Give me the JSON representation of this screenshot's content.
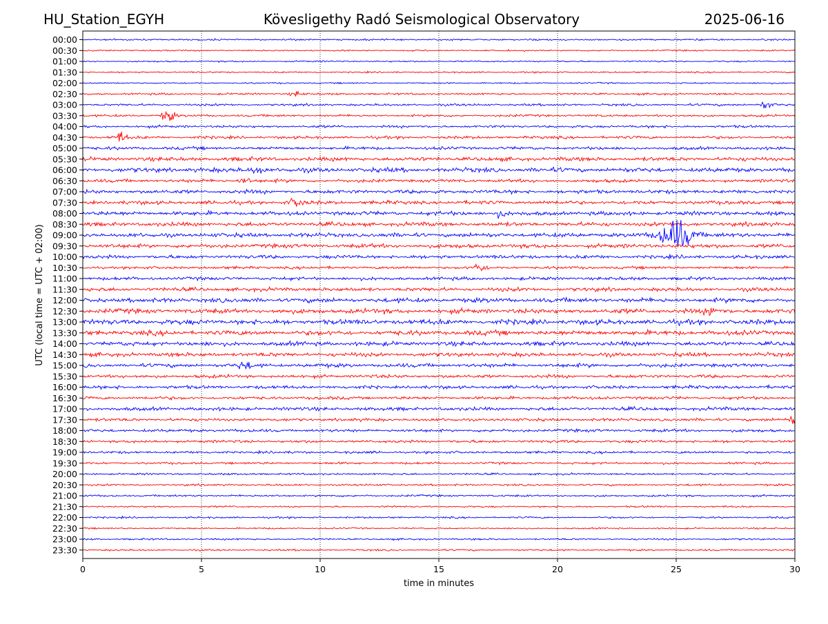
{
  "header": {
    "station": "HU_Station_EGYH",
    "title": "Kövesligethy Radó Seismological Observatory",
    "date": "2025-06-16"
  },
  "chart_data": {
    "type": "line",
    "subtype": "helicorder",
    "title": "Kövesligethy Radó Seismological Observatory",
    "xlabel": "time in minutes",
    "ylabel": "UTC (local time = UTC + 02:00)",
    "xlim": [
      0,
      30
    ],
    "x_ticks": [
      0,
      5,
      10,
      15,
      20,
      25,
      30
    ],
    "x_tick_labels": [
      "0",
      "5",
      "10",
      "15",
      "20",
      "25",
      "30"
    ],
    "grid": "vertical dotted at x ticks",
    "colors": [
      "#0000ff",
      "#ff0000"
    ],
    "row_labels": [
      "00:00",
      "00:30",
      "01:00",
      "01:30",
      "02:00",
      "02:30",
      "03:00",
      "03:30",
      "04:00",
      "04:30",
      "05:00",
      "05:30",
      "06:00",
      "06:30",
      "07:00",
      "07:30",
      "08:00",
      "08:30",
      "09:00",
      "09:30",
      "10:00",
      "10:30",
      "11:00",
      "11:30",
      "12:00",
      "12:30",
      "13:00",
      "13:30",
      "14:00",
      "14:30",
      "15:00",
      "15:30",
      "16:00",
      "16:30",
      "17:00",
      "17:30",
      "18:00",
      "18:30",
      "19:00",
      "19:30",
      "20:00",
      "20:30",
      "21:00",
      "21:30",
      "22:00",
      "22:30",
      "23:00",
      "23:30"
    ],
    "noise_level": [
      0.7,
      0.6,
      0.6,
      0.6,
      0.6,
      0.8,
      0.9,
      0.9,
      1.0,
      1.1,
      1.2,
      1.6,
      1.8,
      1.3,
      1.5,
      1.5,
      1.6,
      1.6,
      1.7,
      1.6,
      1.4,
      1.1,
      1.3,
      1.5,
      1.8,
      1.9,
      2.0,
      1.9,
      1.7,
      1.6,
      1.5,
      1.3,
      1.3,
      1.2,
      1.4,
      1.2,
      1.2,
      1.1,
      1.0,
      0.9,
      0.8,
      0.8,
      0.8,
      0.7,
      0.7,
      0.6,
      0.7,
      0.7
    ],
    "events": [
      {
        "row": "02:30",
        "minute": 9.0,
        "amplitude": 2.5
      },
      {
        "row": "03:00",
        "minute": 28.8,
        "amplitude": 4
      },
      {
        "row": "03:30",
        "minute": 3.6,
        "amplitude": 6
      },
      {
        "row": "04:30",
        "minute": 1.6,
        "amplitude": 5
      },
      {
        "row": "06:00",
        "minute": 7.4,
        "amplitude": 4
      },
      {
        "row": "06:30",
        "minute": 6.8,
        "amplitude": 3
      },
      {
        "row": "07:30",
        "minute": 9.0,
        "amplitude": 4
      },
      {
        "row": "08:00",
        "minute": 17.6,
        "amplitude": 3
      },
      {
        "row": "09:00",
        "minute": 25.0,
        "amplitude": 16
      },
      {
        "row": "10:30",
        "minute": 16.7,
        "amplitude": 4
      },
      {
        "row": "12:30",
        "minute": 26.5,
        "amplitude": 4
      },
      {
        "row": "15:00",
        "minute": 6.8,
        "amplitude": 4
      },
      {
        "row": "17:30",
        "minute": 30.0,
        "amplitude": 4
      }
    ]
  }
}
